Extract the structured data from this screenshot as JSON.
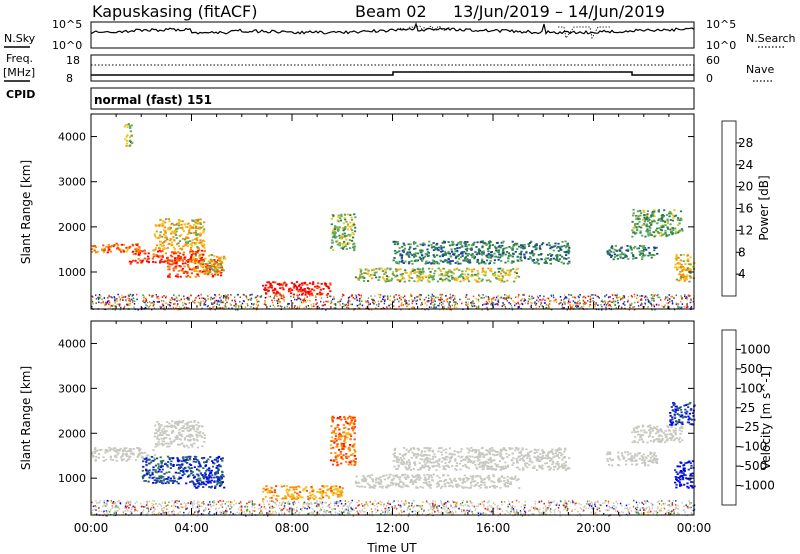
{
  "header": {
    "station": "Kapuskasing (fitACF)",
    "beam": "Beam 02",
    "date_range": "13/Jun/2019 – 14/Jun/2019"
  },
  "noise_panel": {
    "left_label": "N.Sky",
    "left_ticks": [
      "10^5",
      "10^0"
    ],
    "right_ticks": [
      "10^5",
      "10^0"
    ],
    "right_label": "N.Search"
  },
  "freq_panel": {
    "left_label_line1": "Freq.",
    "left_label_line2": "[MHz]",
    "left_ticks": [
      "18",
      "8"
    ],
    "right_ticks": [
      "60",
      "0"
    ],
    "right_label": "Nave",
    "cpid_label": "CPID"
  },
  "cpid_text": "normal (fast) 151",
  "colors": {
    "scale": [
      "#0000ff",
      "#1e3ea0",
      "#287e4a",
      "#5aa858",
      "#f0c21e",
      "#ff8c00",
      "#ff4400",
      "#ff0000"
    ],
    "ground_scatter": "#c8c8c0"
  },
  "chart_data": [
    {
      "type": "heatmap",
      "name": "Power",
      "xlabel": "",
      "ylabel": "Slant Range [km]",
      "xlim": [
        0,
        24
      ],
      "ylim": [
        180,
        4500
      ],
      "y_ticks": [
        "1000",
        "2000",
        "3000",
        "4000"
      ],
      "x_ticks": [
        "00:00",
        "04:00",
        "08:00",
        "12:00",
        "16:00",
        "20:00",
        "00:00"
      ],
      "colorbar": {
        "label": "Power [dB]",
        "range": [
          0,
          32
        ],
        "ticks": [
          "28",
          "24",
          "20",
          "16",
          "12",
          "8",
          "4"
        ]
      },
      "regions": [
        {
          "t0": 0.0,
          "t1": 2.0,
          "r0": 1450,
          "r1": 1650,
          "level": 0.75
        },
        {
          "t0": 1.5,
          "t1": 4.5,
          "r0": 1200,
          "r1": 1500,
          "level": 0.85
        },
        {
          "t0": 3.0,
          "t1": 5.2,
          "r0": 900,
          "r1": 1300,
          "level": 0.8
        },
        {
          "t0": 4.0,
          "t1": 5.3,
          "r0": 1000,
          "r1": 1400,
          "level": 0.55
        },
        {
          "t0": 2.5,
          "t1": 4.5,
          "r0": 1500,
          "r1": 2200,
          "level": 0.6
        },
        {
          "t0": 6.8,
          "t1": 9.5,
          "r0": 500,
          "r1": 800,
          "level": 0.95
        },
        {
          "t0": 9.5,
          "t1": 10.5,
          "r0": 1500,
          "r1": 2300,
          "level": 0.45
        },
        {
          "t0": 10.5,
          "t1": 17.0,
          "r0": 800,
          "r1": 1100,
          "level": 0.5
        },
        {
          "t0": 12.0,
          "t1": 19.0,
          "r0": 1200,
          "r1": 1700,
          "level": 0.3
        },
        {
          "t0": 20.5,
          "t1": 22.5,
          "r0": 1300,
          "r1": 1600,
          "level": 0.35
        },
        {
          "t0": 21.5,
          "t1": 23.5,
          "r0": 1800,
          "r1": 2400,
          "level": 0.4
        },
        {
          "t0": 23.2,
          "t1": 24.0,
          "r0": 800,
          "r1": 1400,
          "level": 0.6
        },
        {
          "t0": 1.3,
          "t1": 1.6,
          "r0": 3800,
          "r1": 4300,
          "level": 0.5
        }
      ]
    },
    {
      "type": "heatmap",
      "name": "Velocity",
      "xlabel": "Time UT",
      "ylabel": "Slant Range [km]",
      "xlim": [
        0,
        24
      ],
      "ylim": [
        180,
        4500
      ],
      "y_ticks": [
        "1000",
        "2000",
        "3000",
        "4000"
      ],
      "x_ticks": [
        "00:00",
        "04:00",
        "08:00",
        "12:00",
        "16:00",
        "20:00",
        "00:00"
      ],
      "colorbar": {
        "label": "Velocity [m s^-1]",
        "ticks": [
          "1000",
          "500",
          "100",
          "25",
          "-25",
          "-100",
          "-500",
          "-1000"
        ]
      },
      "regions": [
        {
          "t0": 0.0,
          "t1": 2.5,
          "r0": 1400,
          "r1": 1700,
          "level": 0.5
        },
        {
          "t0": 2.0,
          "t1": 5.2,
          "r0": 900,
          "r1": 1500,
          "level": 0.2
        },
        {
          "t0": 4.0,
          "t1": 5.3,
          "r0": 800,
          "r1": 1100,
          "level": 0.15
        },
        {
          "t0": 2.5,
          "t1": 4.5,
          "r0": 1700,
          "r1": 2300,
          "level": 0.5
        },
        {
          "t0": 6.8,
          "t1": 10.0,
          "r0": 550,
          "r1": 850,
          "level": 0.65
        },
        {
          "t0": 9.5,
          "t1": 10.5,
          "r0": 1300,
          "r1": 2400,
          "level": 0.75
        },
        {
          "t0": 10.5,
          "t1": 17.0,
          "r0": 800,
          "r1": 1100,
          "level": 0.5
        },
        {
          "t0": 12.0,
          "t1": 19.0,
          "r0": 1200,
          "r1": 1700,
          "level": 0.5
        },
        {
          "t0": 20.5,
          "t1": 22.5,
          "r0": 1300,
          "r1": 1600,
          "level": 0.5
        },
        {
          "t0": 21.5,
          "t1": 23.5,
          "r0": 1800,
          "r1": 2200,
          "level": 0.5
        },
        {
          "t0": 23.2,
          "t1": 24.0,
          "r0": 800,
          "r1": 1400,
          "level": 0.05
        },
        {
          "t0": 23.0,
          "t1": 24.0,
          "r0": 2200,
          "r1": 2700,
          "level": 0.15
        }
      ]
    }
  ]
}
